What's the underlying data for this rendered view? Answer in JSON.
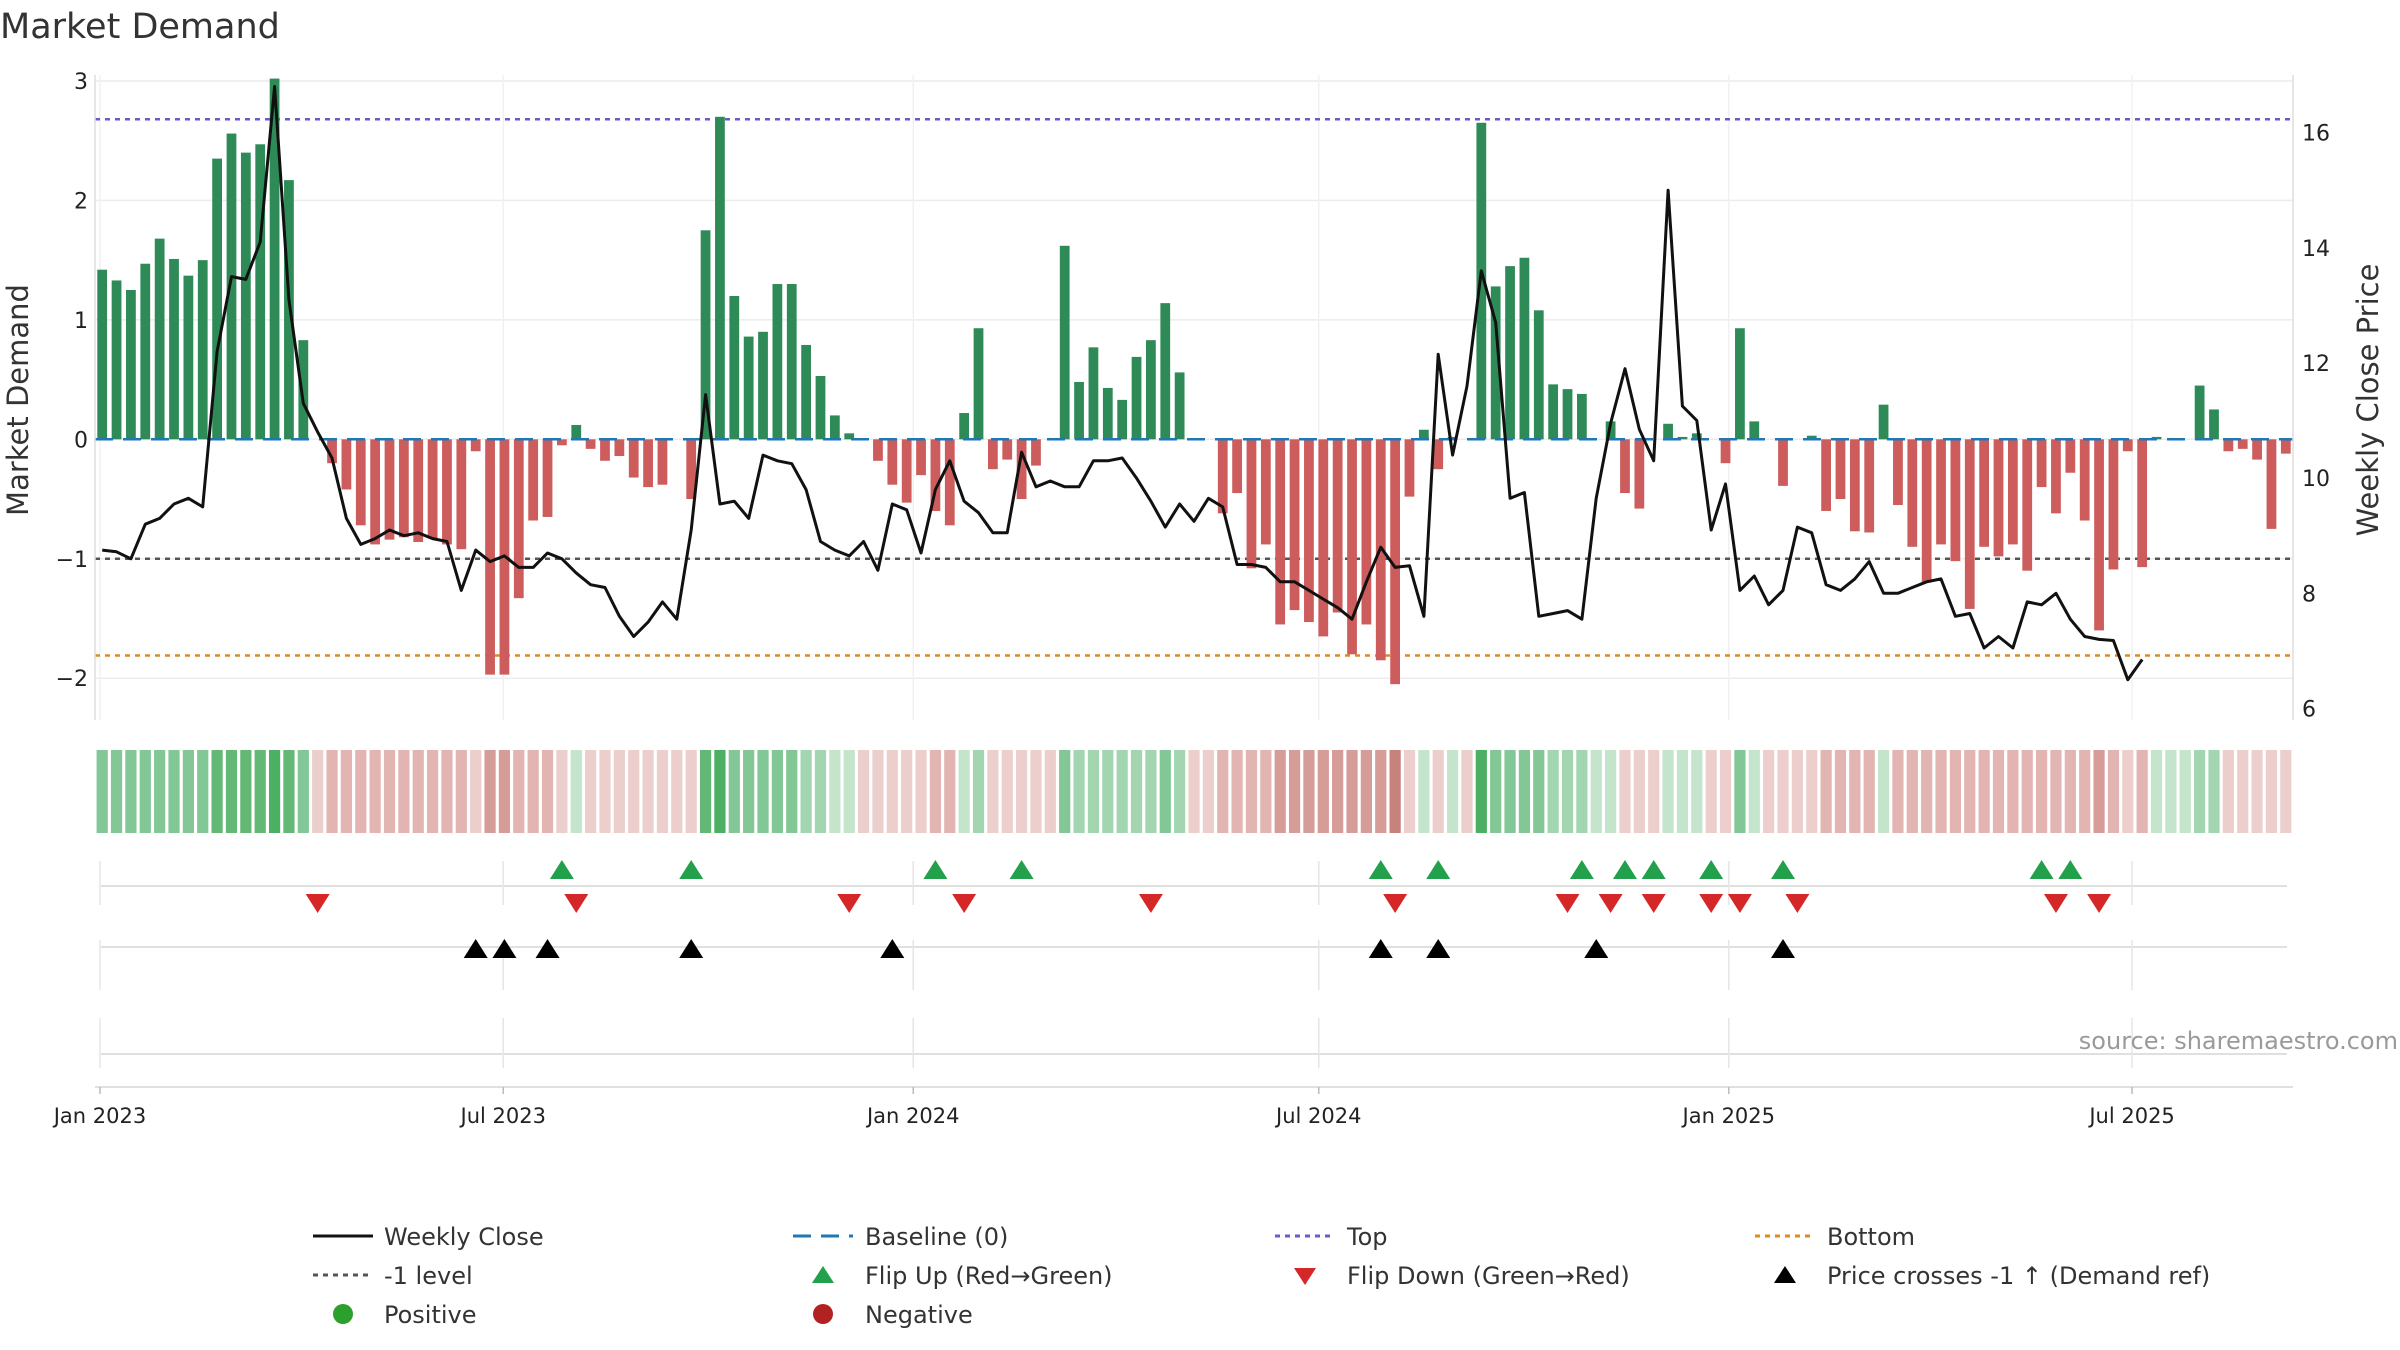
{
  "chart_data": {
    "type": "bar",
    "title": "Market Demand",
    "ylabel": "Market Demand",
    "y2label": "Weekly Close Price",
    "ylim": [
      -2.35,
      3.05
    ],
    "y2lim": [
      5.8,
      17.0
    ],
    "yticks": [
      "3",
      "2",
      "1",
      "0",
      "−1",
      "−2"
    ],
    "y2ticks": [
      "16",
      "14",
      "12",
      "10",
      "8",
      "6"
    ],
    "x_start": "2023-01-02",
    "x_end": "2025-09-08",
    "xticks": [
      "Jan 2023",
      "Jul 2023",
      "Jan 2024",
      "Jul 2024",
      "Jan 2025",
      "Jul 2025"
    ],
    "ref_lines": {
      "top": 2.68,
      "bottom": -1.81,
      "minus_one": -1.0,
      "baseline": 0.0
    },
    "demand_values": [
      1.42,
      1.33,
      1.25,
      1.47,
      1.68,
      1.51,
      1.37,
      1.5,
      2.35,
      2.56,
      2.4,
      2.47,
      3.02,
      2.17,
      0.83,
      0.0,
      -0.2,
      -0.42,
      -0.72,
      -0.88,
      -0.84,
      -0.82,
      -0.86,
      -0.83,
      -0.88,
      -0.92,
      -0.1,
      -1.97,
      -1.97,
      -1.33,
      -0.68,
      -0.65,
      -0.05,
      0.12,
      -0.08,
      -0.18,
      -0.14,
      -0.32,
      -0.4,
      -0.38,
      0.0,
      -0.5,
      1.75,
      2.7,
      1.2,
      0.86,
      0.9,
      1.3,
      1.3,
      0.79,
      0.53,
      0.2,
      0.05,
      0.0,
      -0.18,
      -0.38,
      -0.53,
      -0.3,
      -0.6,
      -0.72,
      0.22,
      0.93,
      -0.25,
      -0.17,
      -0.5,
      -0.22,
      0.0,
      1.62,
      0.48,
      0.77,
      0.43,
      0.33,
      0.69,
      0.83,
      1.14,
      0.56,
      0.0,
      0.0,
      -0.62,
      -0.45,
      -1.08,
      -0.88,
      -1.55,
      -1.43,
      -1.53,
      -1.65,
      -1.45,
      -1.8,
      -1.55,
      -1.85,
      -2.05,
      -0.48,
      0.08,
      -0.25,
      0.02,
      0.0,
      2.65,
      1.28,
      1.45,
      1.52,
      1.08,
      0.46,
      0.42,
      0.38,
      0.0,
      0.15,
      -0.45,
      -0.58,
      0.0,
      0.13,
      0.02,
      0.05,
      0.0,
      -0.2,
      0.93,
      0.15,
      0.0,
      -0.39,
      0.0,
      0.03,
      -0.6,
      -0.5,
      -0.77,
      -0.78,
      0.29,
      -0.55,
      -0.9,
      -1.2,
      -0.88,
      -1.02,
      -1.42,
      -0.9,
      -0.98,
      -0.88,
      -1.1,
      -0.4,
      -0.62,
      -0.28,
      -0.68,
      -1.6,
      -1.09,
      -0.1,
      -1.07,
      0.02,
      0.0,
      0.0,
      0.45,
      0.25,
      -0.1,
      -0.08,
      -0.17,
      -0.75,
      -0.12
    ],
    "close_values": [
      8.75,
      8.72,
      8.6,
      9.2,
      9.3,
      9.55,
      9.65,
      9.5,
      12.2,
      13.5,
      13.45,
      14.1,
      16.8,
      13.1,
      11.3,
      10.8,
      10.35,
      9.3,
      8.85,
      8.95,
      9.1,
      9.0,
      9.05,
      8.95,
      8.9,
      8.05,
      8.75,
      8.55,
      8.65,
      8.45,
      8.45,
      8.7,
      8.6,
      8.35,
      8.15,
      8.1,
      7.6,
      7.25,
      7.5,
      7.85,
      7.55,
      9.1,
      11.45,
      9.55,
      9.6,
      9.3,
      10.4,
      10.3,
      10.25,
      9.8,
      8.9,
      8.75,
      8.65,
      8.9,
      8.4,
      9.55,
      9.45,
      8.7,
      9.8,
      10.3,
      9.6,
      9.4,
      9.05,
      9.05,
      10.45,
      9.85,
      9.95,
      9.85,
      9.85,
      10.3,
      10.3,
      10.35,
      10.0,
      9.6,
      9.15,
      9.55,
      9.25,
      9.65,
      9.5,
      8.5,
      8.5,
      8.45,
      8.2,
      8.2,
      8.05,
      7.9,
      7.75,
      7.55,
      8.2,
      8.8,
      8.45,
      8.48,
      7.6,
      12.15,
      10.4,
      11.6,
      13.6,
      12.7,
      9.65,
      9.75,
      7.6,
      7.65,
      7.7,
      7.55,
      9.65,
      10.95,
      11.9,
      10.85,
      10.3,
      15.0,
      11.25,
      11.0,
      9.1,
      9.9,
      8.05,
      8.3,
      7.8,
      8.05,
      9.15,
      9.05,
      8.15,
      8.05,
      8.25,
      8.55,
      8.0,
      8.0,
      8.1,
      8.2,
      8.25,
      7.6,
      7.65,
      7.05,
      7.25,
      7.05,
      7.85,
      7.8,
      8.0,
      7.55,
      7.25,
      7.2,
      7.18,
      6.5,
      6.85
    ],
    "flips_up": [
      32,
      41,
      58,
      64,
      89,
      93,
      103,
      106,
      108,
      112,
      117,
      135,
      137
    ],
    "flips_down": [
      15,
      33,
      52,
      60,
      73,
      90,
      102,
      105,
      108,
      112,
      114,
      118,
      136,
      139
    ],
    "price_cross_minus1": [
      26,
      28,
      31,
      41,
      55,
      89,
      93,
      104,
      117
    ],
    "strip_shades": [
      3,
      3,
      3,
      3,
      3,
      3,
      3,
      3,
      4,
      4,
      4,
      4,
      5,
      4,
      3,
      -1,
      -2,
      -2,
      -2,
      -2,
      -2,
      -2,
      -2,
      -2,
      -2,
      -2,
      -1,
      -3,
      -3,
      -2,
      -2,
      -2,
      -1,
      1,
      -1,
      -1,
      -1,
      -1,
      -1,
      -1,
      -1,
      -1,
      4,
      5,
      3,
      3,
      3,
      3,
      3,
      2,
      2,
      1,
      1,
      -1,
      -1,
      -1,
      -1,
      -1,
      -2,
      -2,
      1,
      2,
      -1,
      -1,
      -1,
      -1,
      -1,
      3,
      2,
      2,
      2,
      2,
      2,
      2,
      3,
      2,
      -1,
      -1,
      -2,
      -2,
      -2,
      -2,
      -3,
      -3,
      -3,
      -3,
      -3,
      -3,
      -3,
      -3,
      -4,
      -1,
      1,
      -1,
      1,
      -1,
      5,
      3,
      3,
      3,
      3,
      2,
      2,
      2,
      1,
      1,
      -1,
      -1,
      -1,
      1,
      1,
      1,
      -1,
      -1,
      3,
      1,
      -1,
      -1,
      -1,
      -1,
      -2,
      -2,
      -2,
      -2,
      1,
      -2,
      -2,
      -2,
      -2,
      -2,
      -2,
      -2,
      -2,
      -2,
      -2,
      -2,
      -2,
      -2,
      -2,
      -3,
      -2,
      -1,
      -2,
      1,
      1,
      1,
      2,
      2,
      -1,
      -1,
      -1,
      -1,
      -1
    ]
  },
  "source": "source: sharemaestro.com",
  "legend": {
    "weekly_close": "Weekly Close",
    "baseline": "Baseline (0)",
    "top": "Top",
    "bottom": "Bottom",
    "minus_one": "-1 level",
    "flip_up": "Flip Up (Red→Green)",
    "flip_down": "Flip Down (Green→Red)",
    "price_cross": "Price crosses -1 ↑ (Demand ref)",
    "positive": "Positive",
    "negative": "Negative"
  },
  "colors": {
    "positive_bar": "#2e8b57",
    "negative_bar": "#cd5c5c",
    "close_line": "#111111",
    "baseline": "#1f77b4",
    "top": "#6a5acd",
    "bottom": "#e08a1e",
    "minus_one": "#555555",
    "flip_up": "#22a04b",
    "flip_down": "#d62728",
    "cross": "#000000",
    "positive_dot": "#2ca02c",
    "negative_dot": "#b22222"
  }
}
